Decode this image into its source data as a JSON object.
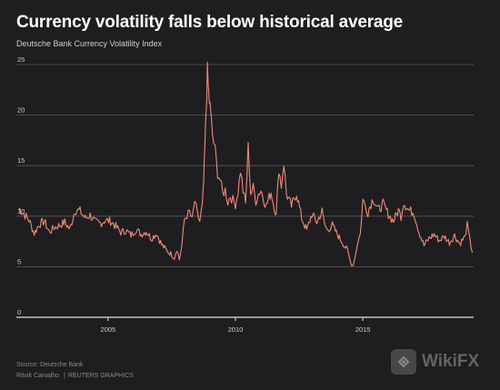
{
  "header": {
    "title": "Currency volatility falls below historical average",
    "subtitle": "Deutsche Bank Currency Volatility Index"
  },
  "footer": {
    "source": "Source: Deutsche Bank",
    "author": "Ritvik Carvalho",
    "agency": "REUTERS GRAPHICS"
  },
  "watermark": {
    "text": "WikiFX"
  },
  "colors": {
    "line": "#f08a78",
    "grid": "#5a5a5a",
    "axis": "#e0e0e0",
    "background": "#1e1e20"
  },
  "chart_data": {
    "type": "line",
    "xlim": [
      2001.4,
      2019.35
    ],
    "ylim": [
      0,
      25
    ],
    "ytick_labels": [
      "0",
      "5",
      "10",
      "15",
      "20",
      "25"
    ],
    "ytick_values": [
      0,
      5,
      10,
      15,
      20,
      25
    ],
    "xtick_labels": [
      "2005",
      "2010",
      "2015"
    ],
    "xtick_values": [
      2005,
      2010,
      2015
    ],
    "grid": true,
    "series": [
      {
        "x": [
          2001.5,
          2001.7,
          2001.9,
          2002.1,
          2002.3,
          2002.5,
          2002.7,
          2002.9,
          2003.1,
          2003.3,
          2003.5,
          2003.7,
          2003.9,
          2004.1,
          2004.3,
          2004.5,
          2004.7,
          2004.9,
          2005.1,
          2005.3,
          2005.5,
          2005.7,
          2005.9,
          2006.1,
          2006.3,
          2006.5,
          2006.7,
          2006.9,
          2007.1,
          2007.3,
          2007.5,
          2007.6,
          2007.7,
          2007.8,
          2007.9,
          2008.0,
          2008.1,
          2008.2,
          2008.3,
          2008.4,
          2008.5,
          2008.6,
          2008.7,
          2008.75,
          2008.8,
          2008.85,
          2008.9,
          2008.95,
          2009.0,
          2009.1,
          2009.2,
          2009.3,
          2009.4,
          2009.5,
          2009.6,
          2009.7,
          2009.8,
          2009.9,
          2010.0,
          2010.1,
          2010.2,
          2010.3,
          2010.4,
          2010.5,
          2010.6,
          2010.7,
          2010.8,
          2010.9,
          2011.0,
          2011.2,
          2011.4,
          2011.6,
          2011.7,
          2011.8,
          2011.9,
          2012.0,
          2012.2,
          2012.4,
          2012.6,
          2012.8,
          2013.0,
          2013.2,
          2013.4,
          2013.5,
          2013.6,
          2013.8,
          2014.0,
          2014.2,
          2014.4,
          2014.5,
          2014.6,
          2014.7,
          2014.8,
          2014.9,
          2015.0,
          2015.1,
          2015.2,
          2015.4,
          2015.6,
          2015.8,
          2016.0,
          2016.2,
          2016.4,
          2016.5,
          2016.6,
          2016.8,
          2017.0,
          2017.2,
          2017.4,
          2017.6,
          2017.8,
          2018.0,
          2018.2,
          2018.4,
          2018.6,
          2018.8,
          2019.0,
          2019.1,
          2019.2,
          2019.3
        ],
        "y": [
          10.8,
          10.2,
          9.6,
          8.3,
          9.2,
          9.5,
          8.4,
          8.9,
          9.1,
          9.4,
          8.7,
          10.6,
          10.5,
          9.8,
          10.1,
          9.4,
          9.3,
          9.6,
          9.5,
          9.0,
          8.4,
          8.6,
          8.1,
          8.7,
          8.2,
          8.5,
          7.8,
          8.3,
          7.2,
          6.6,
          6.2,
          5.9,
          6.8,
          5.7,
          7.2,
          9.7,
          10.1,
          10.4,
          9.6,
          11.5,
          10.2,
          9.5,
          11.0,
          13.2,
          16.8,
          20.5,
          24.2,
          22.0,
          20.8,
          18.0,
          16.5,
          14.3,
          13.6,
          12.2,
          12.6,
          11.4,
          12.0,
          11.6,
          11.2,
          12.4,
          14.6,
          12.5,
          11.2,
          16.8,
          12.3,
          12.8,
          11.5,
          12.2,
          12.6,
          11.0,
          12.4,
          10.0,
          14.8,
          13.0,
          15.3,
          12.2,
          11.0,
          12.3,
          9.8,
          8.6,
          10.2,
          9.4,
          10.5,
          9.2,
          8.6,
          9.1,
          8.2,
          7.4,
          6.6,
          5.6,
          5.1,
          6.0,
          7.5,
          8.2,
          11.6,
          11.0,
          10.4,
          11.8,
          10.6,
          11.2,
          10.2,
          9.5,
          10.6,
          10.0,
          11.4,
          10.6,
          10.4,
          8.5,
          7.1,
          7.8,
          8.2,
          7.6,
          8.0,
          7.4,
          8.1,
          7.3,
          7.9,
          9.1,
          7.6,
          6.4
        ]
      }
    ]
  }
}
